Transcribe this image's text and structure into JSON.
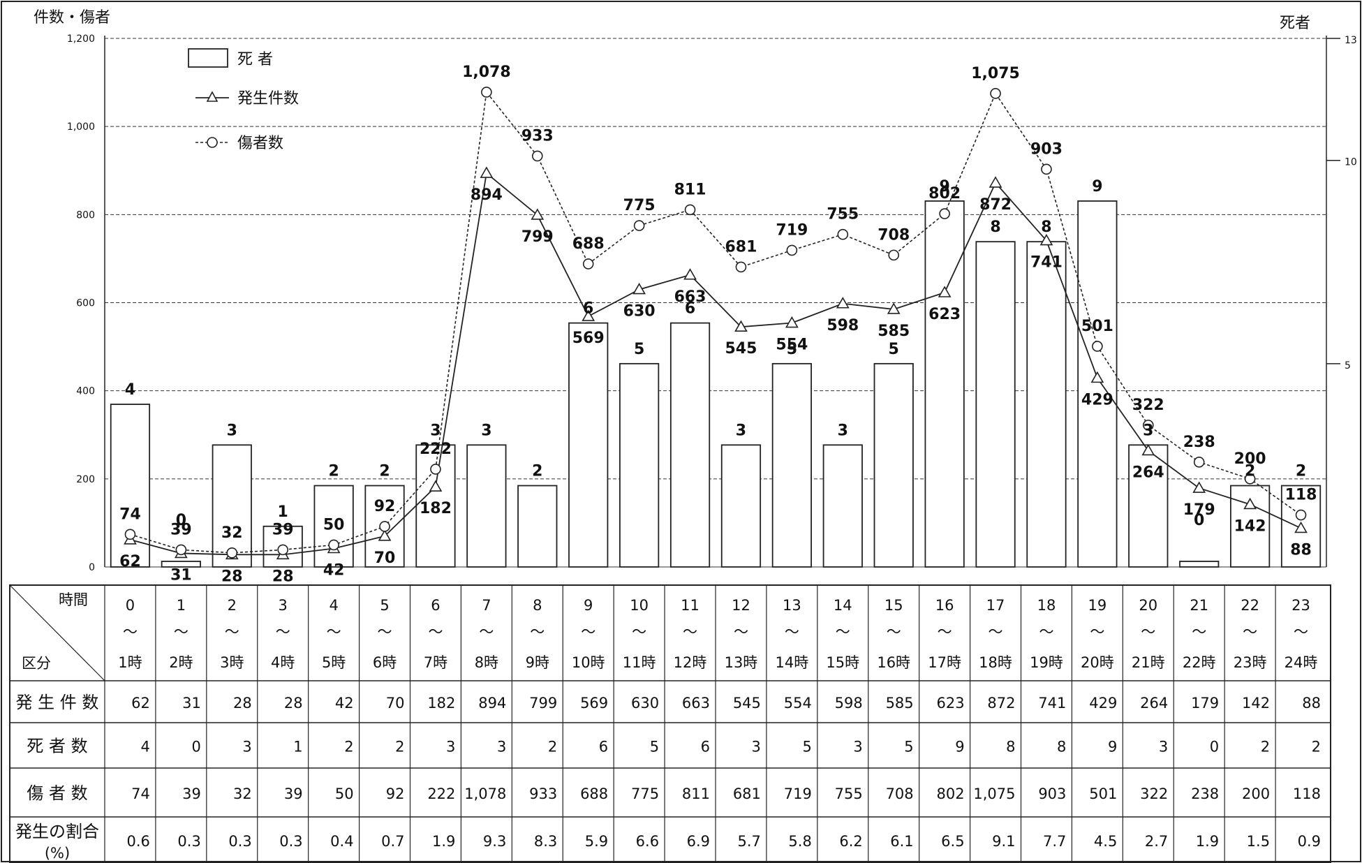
{
  "chart_data": {
    "type": "bar",
    "y_left_label": "件数・傷者",
    "y_right_label": "死者",
    "y_left_range": [
      0,
      1200
    ],
    "y_left_ticks": [
      "0",
      "200",
      "400",
      "600",
      "800",
      "1,000",
      "1,200"
    ],
    "y_right_range": [
      0,
      13
    ],
    "y_right_ticks": [
      "5",
      "10",
      "13"
    ],
    "grid": true,
    "legend_position": "top-left",
    "legend": [
      {
        "label": "死 者",
        "kind": "bar"
      },
      {
        "label": "発生件数",
        "kind": "line-triangle"
      },
      {
        "label": "傷者数",
        "kind": "dotted-circle"
      }
    ],
    "hours": [
      "0",
      "1",
      "2",
      "3",
      "4",
      "5",
      "6",
      "7",
      "8",
      "9",
      "10",
      "11",
      "12",
      "13",
      "14",
      "15",
      "16",
      "17",
      "18",
      "19",
      "20",
      "21",
      "22",
      "23"
    ],
    "hours_end": [
      "1時",
      "2時",
      "3時",
      "4時",
      "5時",
      "6時",
      "7時",
      "8時",
      "9時",
      "10時",
      "11時",
      "12時",
      "13時",
      "14時",
      "15時",
      "16時",
      "17時",
      "18時",
      "19時",
      "20時",
      "21時",
      "22時",
      "23時",
      "24時"
    ],
    "tilde": "～",
    "series": [
      {
        "name": "死 者",
        "axis": "right",
        "values": [
          4,
          0,
          3,
          1,
          2,
          2,
          3,
          3,
          2,
          6,
          5,
          6,
          3,
          5,
          3,
          5,
          9,
          8,
          8,
          9,
          3,
          0,
          2,
          2
        ]
      },
      {
        "name": "発生件数",
        "axis": "left",
        "values": [
          62,
          31,
          28,
          28,
          42,
          70,
          182,
          894,
          799,
          569,
          630,
          663,
          545,
          554,
          598,
          585,
          623,
          872,
          741,
          429,
          264,
          179,
          142,
          88
        ]
      },
      {
        "name": "傷者数",
        "axis": "left",
        "values": [
          74,
          39,
          32,
          39,
          50,
          92,
          222,
          1078,
          933,
          688,
          775,
          811,
          681,
          719,
          755,
          708,
          802,
          1075,
          903,
          501,
          322,
          238,
          200,
          118
        ]
      }
    ],
    "table": {
      "header_time": "時間",
      "header_cat": "区分",
      "rows": [
        {
          "label": "発 生 件 数",
          "values": [
            "62",
            "31",
            "28",
            "28",
            "42",
            "70",
            "182",
            "894",
            "799",
            "569",
            "630",
            "663",
            "545",
            "554",
            "598",
            "585",
            "623",
            "872",
            "741",
            "429",
            "264",
            "179",
            "142",
            "88"
          ]
        },
        {
          "label": "死 者 数",
          "values": [
            "4",
            "0",
            "3",
            "1",
            "2",
            "2",
            "3",
            "3",
            "2",
            "6",
            "5",
            "6",
            "3",
            "5",
            "3",
            "5",
            "9",
            "8",
            "8",
            "9",
            "3",
            "0",
            "2",
            "2"
          ]
        },
        {
          "label": "傷 者 数",
          "values": [
            "74",
            "39",
            "32",
            "39",
            "50",
            "92",
            "222",
            "1,078",
            "933",
            "688",
            "775",
            "811",
            "681",
            "719",
            "755",
            "708",
            "802",
            "1,075",
            "903",
            "501",
            "322",
            "238",
            "200",
            "118"
          ]
        },
        {
          "label": "発生の割合",
          "sublabel": "(%)",
          "values": [
            "0.6",
            "0.3",
            "0.3",
            "0.3",
            "0.4",
            "0.7",
            "1.9",
            "9.3",
            "8.3",
            "5.9",
            "6.6",
            "6.9",
            "5.7",
            "5.8",
            "6.2",
            "6.1",
            "6.5",
            "9.1",
            "7.7",
            "4.5",
            "2.7",
            "1.9",
            "1.5",
            "0.9"
          ]
        }
      ]
    }
  }
}
